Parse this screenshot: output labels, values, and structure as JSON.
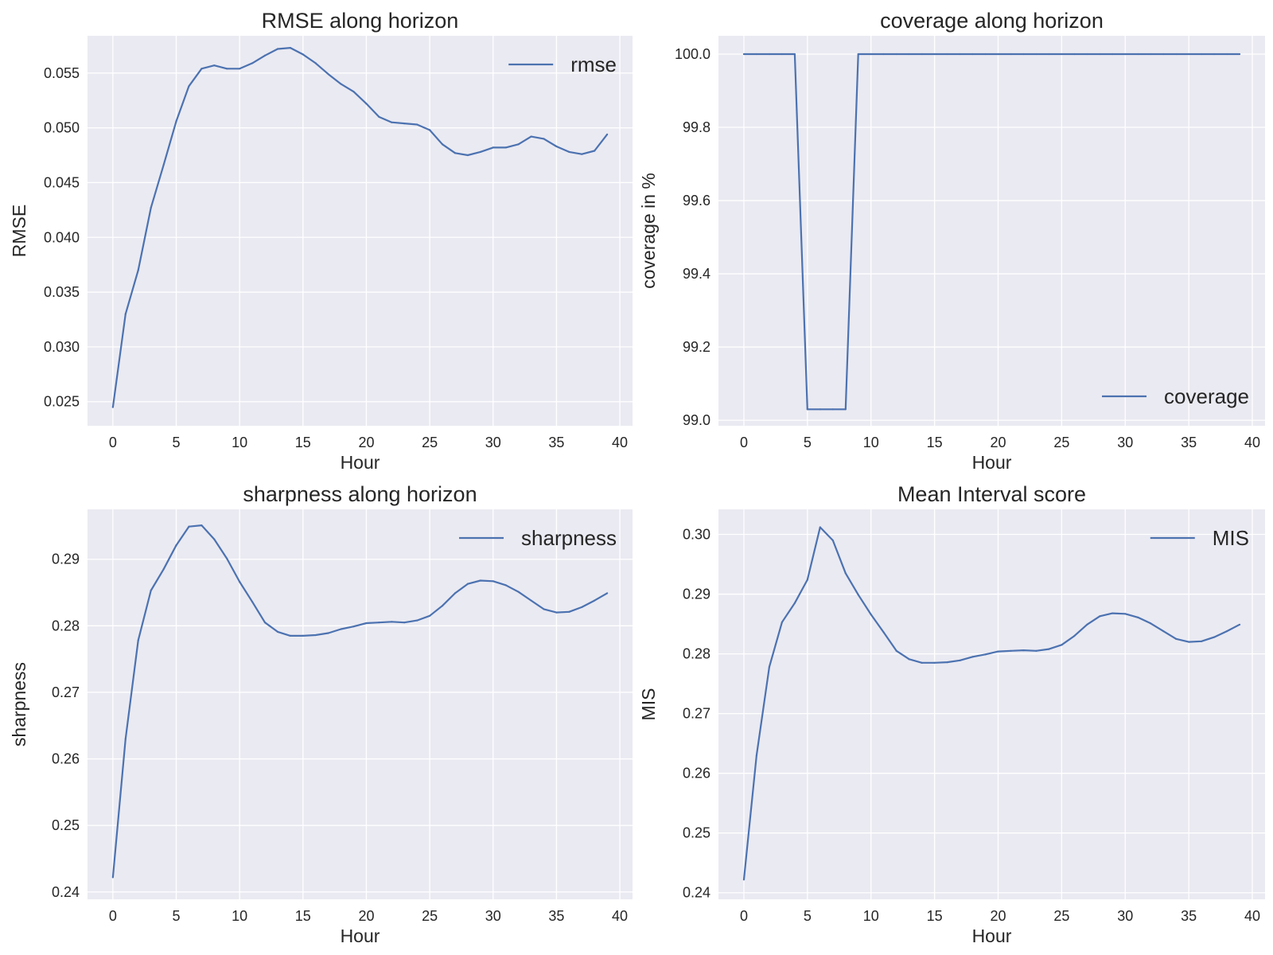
{
  "figure": {
    "background": "#ffffff",
    "axes_facecolor": "#eaeaf2",
    "grid_color": "#ffffff",
    "line_color": "#4c72b0"
  },
  "chart_data": [
    {
      "type": "line",
      "title": "RMSE along horizon",
      "xlabel": "Hour",
      "ylabel": "RMSE",
      "grid": true,
      "legend_position": "upper right",
      "xlim": [
        -2,
        41
      ],
      "ylim": [
        0.0228,
        0.0584
      ],
      "xticks": [
        0,
        5,
        10,
        15,
        20,
        25,
        30,
        35,
        40
      ],
      "xtick_labels": [
        "0",
        "5",
        "10",
        "15",
        "20",
        "25",
        "30",
        "35",
        "40"
      ],
      "yticks": [
        0.025,
        0.03,
        0.035,
        0.04,
        0.045,
        0.05,
        0.055
      ],
      "ytick_labels": [
        "0.025",
        "0.030",
        "0.035",
        "0.040",
        "0.045",
        "0.050",
        "0.055"
      ],
      "series": [
        {
          "name": "rmse",
          "x": [
            0,
            1,
            2,
            3,
            4,
            5,
            6,
            7,
            8,
            9,
            10,
            11,
            12,
            13,
            14,
            15,
            16,
            17,
            18,
            19,
            20,
            21,
            22,
            23,
            24,
            25,
            26,
            27,
            28,
            29,
            30,
            31,
            32,
            33,
            34,
            35,
            36,
            37,
            38,
            39
          ],
          "y": [
            0.0245,
            0.033,
            0.037,
            0.0427,
            0.0466,
            0.0506,
            0.0538,
            0.0554,
            0.0557,
            0.0554,
            0.0554,
            0.0559,
            0.0566,
            0.0572,
            0.0573,
            0.0567,
            0.0559,
            0.0549,
            0.054,
            0.0533,
            0.0522,
            0.051,
            0.0505,
            0.0504,
            0.0503,
            0.0498,
            0.0485,
            0.0477,
            0.0475,
            0.0478,
            0.0482,
            0.0482,
            0.0485,
            0.0492,
            0.049,
            0.0483,
            0.0478,
            0.0476,
            0.0479,
            0.0494
          ]
        }
      ]
    },
    {
      "type": "line",
      "title": "coverage along horizon",
      "xlabel": "Hour",
      "ylabel": "coverage in %",
      "grid": true,
      "legend_position": "lower right",
      "xlim": [
        -2,
        41
      ],
      "ylim": [
        98.985,
        100.05
      ],
      "xticks": [
        0,
        5,
        10,
        15,
        20,
        25,
        30,
        35,
        40
      ],
      "xtick_labels": [
        "0",
        "5",
        "10",
        "15",
        "20",
        "25",
        "30",
        "35",
        "40"
      ],
      "yticks": [
        99.0,
        99.2,
        99.4,
        99.6,
        99.8,
        100.0
      ],
      "ytick_labels": [
        "99.0",
        "99.2",
        "99.4",
        "99.6",
        "99.8",
        "100.0"
      ],
      "series": [
        {
          "name": "coverage",
          "x": [
            0,
            1,
            2,
            3,
            4,
            5,
            6,
            7,
            8,
            9,
            10,
            11,
            12,
            13,
            14,
            15,
            16,
            17,
            18,
            19,
            20,
            21,
            22,
            23,
            24,
            25,
            26,
            27,
            28,
            29,
            30,
            31,
            32,
            33,
            34,
            35,
            36,
            37,
            38,
            39
          ],
          "y": [
            100,
            100,
            100,
            100,
            100,
            99.03,
            99.03,
            99.03,
            99.03,
            100,
            100,
            100,
            100,
            100,
            100,
            100,
            100,
            100,
            100,
            100,
            100,
            100,
            100,
            100,
            100,
            100,
            100,
            100,
            100,
            100,
            100,
            100,
            100,
            100,
            100,
            100,
            100,
            100,
            100,
            100
          ]
        }
      ]
    },
    {
      "type": "line",
      "title": "sharpness along horizon",
      "xlabel": "Hour",
      "ylabel": "sharpness",
      "grid": true,
      "legend_position": "upper right",
      "xlim": [
        -2,
        41
      ],
      "ylim": [
        0.2389,
        0.2975
      ],
      "xticks": [
        0,
        5,
        10,
        15,
        20,
        25,
        30,
        35,
        40
      ],
      "xtick_labels": [
        "0",
        "5",
        "10",
        "15",
        "20",
        "25",
        "30",
        "35",
        "40"
      ],
      "yticks": [
        0.24,
        0.25,
        0.26,
        0.27,
        0.28,
        0.29
      ],
      "ytick_labels": [
        "0.24",
        "0.25",
        "0.26",
        "0.27",
        "0.28",
        "0.29"
      ],
      "series": [
        {
          "name": "sharpness",
          "x": [
            0,
            1,
            2,
            3,
            4,
            5,
            6,
            7,
            8,
            9,
            10,
            11,
            12,
            13,
            14,
            15,
            16,
            17,
            18,
            19,
            20,
            21,
            22,
            23,
            24,
            25,
            26,
            27,
            28,
            29,
            30,
            31,
            32,
            33,
            34,
            35,
            36,
            37,
            38,
            39
          ],
          "y": [
            0.2422,
            0.263,
            0.2778,
            0.2853,
            0.2885,
            0.2921,
            0.2949,
            0.2951,
            0.293,
            0.2901,
            0.2866,
            0.2836,
            0.2805,
            0.2791,
            0.2785,
            0.2785,
            0.2786,
            0.2789,
            0.2795,
            0.2799,
            0.2804,
            0.2805,
            0.2806,
            0.2805,
            0.2808,
            0.2815,
            0.283,
            0.2849,
            0.2863,
            0.2868,
            0.2867,
            0.2861,
            0.2851,
            0.2838,
            0.2825,
            0.282,
            0.2821,
            0.2828,
            0.2838,
            0.2849
          ]
        }
      ]
    },
    {
      "type": "line",
      "title": "Mean Interval score",
      "xlabel": "Hour",
      "ylabel": "MIS",
      "grid": true,
      "legend_position": "upper right",
      "xlim": [
        -2,
        41
      ],
      "ylim": [
        0.2389,
        0.3042
      ],
      "xticks": [
        0,
        5,
        10,
        15,
        20,
        25,
        30,
        35,
        40
      ],
      "xtick_labels": [
        "0",
        "5",
        "10",
        "15",
        "20",
        "25",
        "30",
        "35",
        "40"
      ],
      "yticks": [
        0.24,
        0.25,
        0.26,
        0.27,
        0.28,
        0.29,
        0.3
      ],
      "ytick_labels": [
        "0.24",
        "0.25",
        "0.26",
        "0.27",
        "0.28",
        "0.29",
        "0.30"
      ],
      "series": [
        {
          "name": "MIS",
          "x": [
            0,
            1,
            2,
            3,
            4,
            5,
            6,
            7,
            8,
            9,
            10,
            11,
            12,
            13,
            14,
            15,
            16,
            17,
            18,
            19,
            20,
            21,
            22,
            23,
            24,
            25,
            26,
            27,
            28,
            29,
            30,
            31,
            32,
            33,
            34,
            35,
            36,
            37,
            38,
            39
          ],
          "y": [
            0.2422,
            0.263,
            0.2778,
            0.2853,
            0.2885,
            0.2924,
            0.3012,
            0.299,
            0.2935,
            0.2899,
            0.2866,
            0.2836,
            0.2805,
            0.2791,
            0.2785,
            0.2785,
            0.2786,
            0.2789,
            0.2795,
            0.2799,
            0.2804,
            0.2805,
            0.2806,
            0.2805,
            0.2808,
            0.2815,
            0.283,
            0.2849,
            0.2863,
            0.2868,
            0.2867,
            0.2861,
            0.2851,
            0.2838,
            0.2825,
            0.282,
            0.2821,
            0.2828,
            0.2838,
            0.2849
          ]
        }
      ]
    }
  ]
}
